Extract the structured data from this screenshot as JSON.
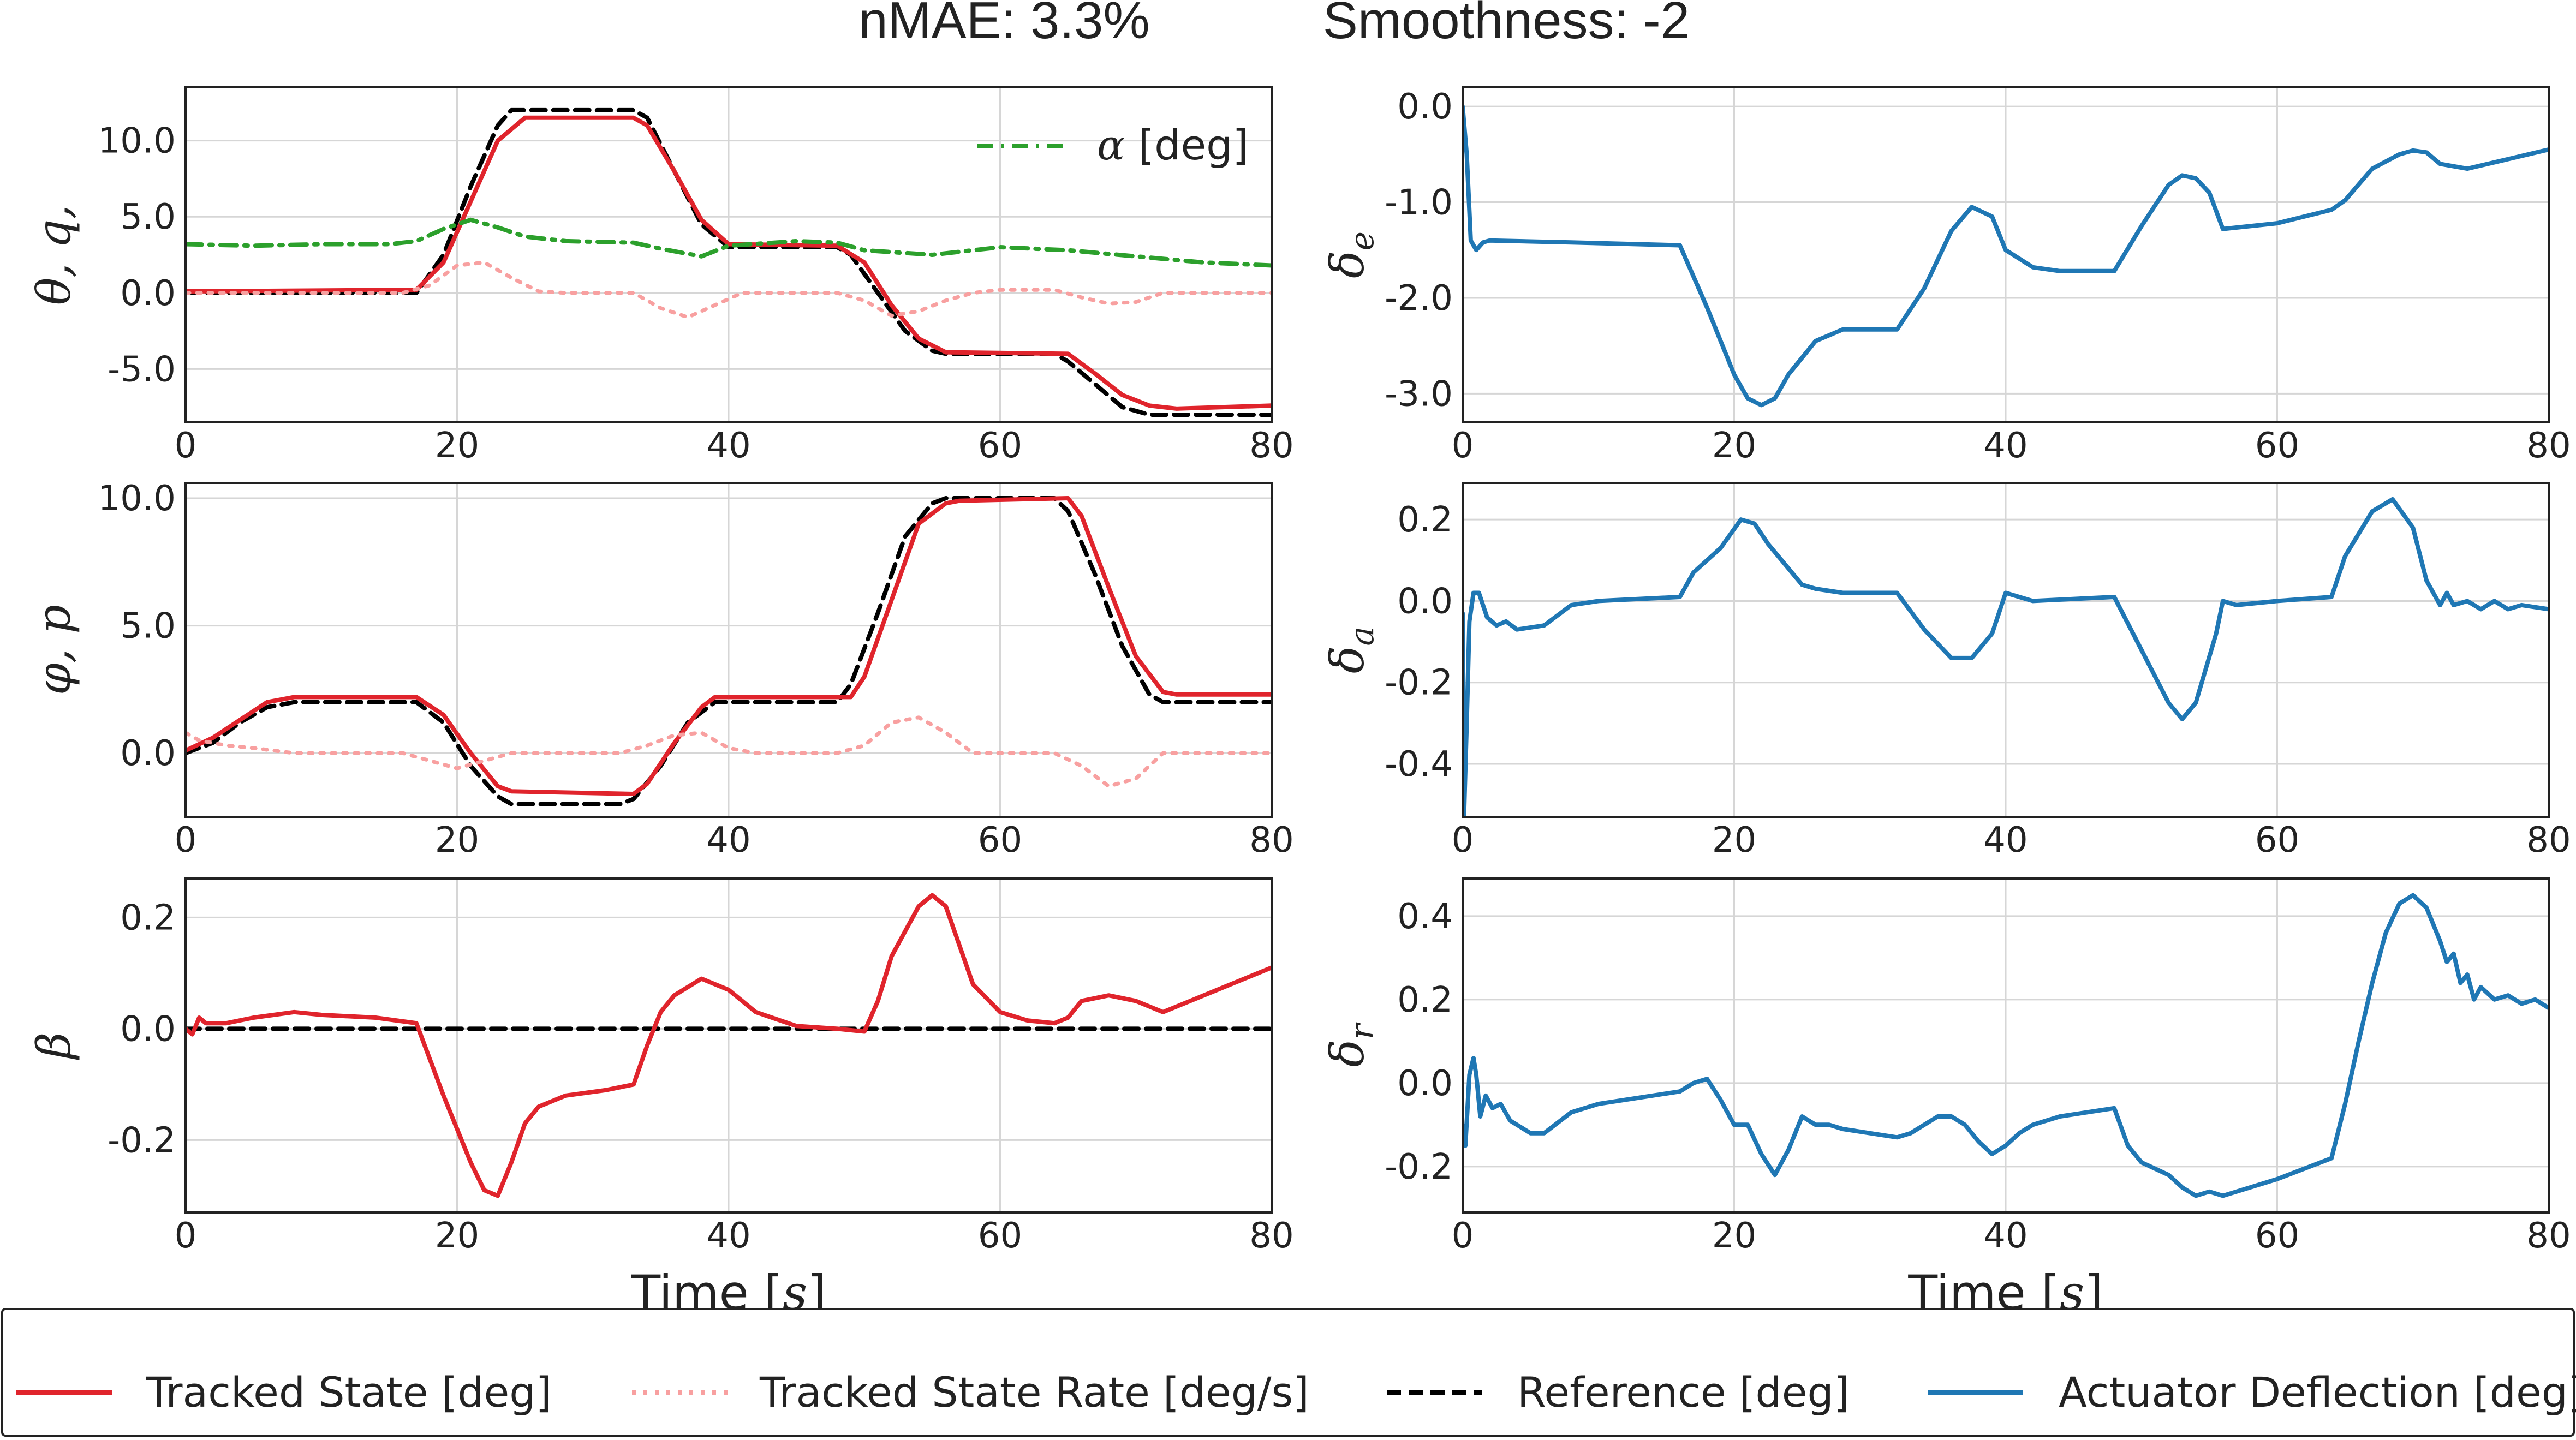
{
  "title": {
    "nmae": "nMAE: 3.3%",
    "smoothness": "Smoothness: -2"
  },
  "colors": {
    "tracked": "#e0242c",
    "rate": "#f8a0a0",
    "reference": "#000000",
    "alpha": "#2ca02c",
    "actuator": "#1f77b4"
  },
  "legend": {
    "items": [
      {
        "label": "Tracked State [deg]",
        "style": "tracked"
      },
      {
        "label": "Tracked State Rate [deg/s]",
        "style": "rate"
      },
      {
        "label": "Reference [deg]",
        "style": "reference"
      },
      {
        "label": "Actuator Deflection [deg]",
        "style": "actuator"
      }
    ]
  },
  "chart_data": [
    {
      "id": "pitch",
      "type": "line",
      "ylabel": "θ, q,",
      "xlim": [
        0,
        80
      ],
      "ylim": [
        -8.5,
        13.5
      ],
      "xticks": [
        0,
        20,
        40,
        60,
        80
      ],
      "xticklabels": [
        "0",
        "20",
        "40",
        "60",
        "80"
      ],
      "yticks": [
        -5,
        0,
        5,
        10
      ],
      "yticklabels": [
        "-5.0",
        "0.0",
        "5.0",
        "10.0"
      ],
      "xlabel": "",
      "annotation": "α [deg]",
      "series": [
        {
          "name": "Reference",
          "style": "reference",
          "x": [
            0,
            17,
            19,
            21,
            23,
            24,
            33,
            34,
            36,
            38,
            40,
            48,
            49,
            51,
            53,
            55,
            56,
            64,
            65,
            67,
            69,
            71,
            80
          ],
          "y": [
            0,
            0,
            2.5,
            7,
            11,
            12,
            12,
            11.5,
            8,
            4.5,
            3,
            3,
            2.5,
            0,
            -2.5,
            -3.8,
            -4,
            -4,
            -4.5,
            -6,
            -7.5,
            -8,
            -8
          ]
        },
        {
          "name": "Tracked State",
          "style": "tracked",
          "x": [
            0,
            17,
            19,
            21,
            23,
            25,
            33,
            34,
            36,
            38,
            40,
            48,
            50,
            52,
            54,
            56,
            65,
            67,
            69,
            71,
            73,
            80
          ],
          "y": [
            0.1,
            0.2,
            2,
            6,
            10,
            11.5,
            11.5,
            11,
            8,
            4.8,
            3.2,
            3.1,
            2,
            -0.8,
            -3,
            -3.9,
            -4,
            -5.3,
            -6.7,
            -7.4,
            -7.6,
            -7.4
          ]
        },
        {
          "name": "Tracked State Rate",
          "style": "rate",
          "x": [
            0,
            10,
            16,
            18,
            20,
            22,
            24,
            26,
            28,
            33,
            35,
            37,
            39,
            41,
            44,
            48,
            50,
            52,
            54,
            56,
            58,
            60,
            64,
            66,
            68,
            70,
            72,
            75,
            80
          ],
          "y": [
            0,
            0,
            0,
            0.5,
            1.8,
            2,
            1,
            0.1,
            0,
            0,
            -1,
            -1.6,
            -0.8,
            0,
            0,
            0,
            -0.5,
            -1.5,
            -1.2,
            -0.5,
            0,
            0.2,
            0.2,
            -0.3,
            -0.7,
            -0.6,
            0,
            0,
            0
          ]
        },
        {
          "name": "Alpha",
          "style": "alpha",
          "x": [
            0,
            5,
            10,
            15,
            17,
            19,
            21,
            23,
            25,
            28,
            33,
            35,
            38,
            40,
            45,
            48,
            50,
            55,
            60,
            65,
            70,
            75,
            80
          ],
          "y": [
            3.2,
            3.1,
            3.2,
            3.2,
            3.4,
            4.2,
            4.8,
            4.3,
            3.7,
            3.4,
            3.3,
            2.9,
            2.4,
            3.1,
            3.4,
            3.3,
            2.8,
            2.5,
            3.0,
            2.8,
            2.4,
            2.0,
            1.8
          ]
        }
      ]
    },
    {
      "id": "elevator",
      "type": "line",
      "ylabel": "δe",
      "xlim": [
        0,
        80
      ],
      "ylim": [
        -3.3,
        0.2
      ],
      "xticks": [
        0,
        20,
        40,
        60,
        80
      ],
      "xticklabels": [
        "0",
        "20",
        "40",
        "60",
        "80"
      ],
      "yticks": [
        -3,
        -2,
        -1,
        0
      ],
      "yticklabels": [
        "-3.0",
        "-2.0",
        "-1.0",
        "0.0"
      ],
      "xlabel": "",
      "series": [
        {
          "name": "Actuator Deflection",
          "style": "actuator",
          "x": [
            0,
            0.3,
            0.6,
            1,
            1.5,
            2,
            8,
            16,
            18,
            20,
            21,
            22,
            23,
            24,
            26,
            28,
            32,
            34,
            36,
            37.5,
            39,
            40,
            42,
            44,
            48,
            50,
            52,
            53,
            54,
            55,
            56,
            60,
            64,
            65,
            67,
            69,
            70,
            71,
            72,
            74,
            77,
            80
          ],
          "y": [
            0,
            -0.5,
            -1.4,
            -1.5,
            -1.42,
            -1.4,
            -1.42,
            -1.45,
            -2.1,
            -2.8,
            -3.05,
            -3.12,
            -3.05,
            -2.8,
            -2.45,
            -2.33,
            -2.33,
            -1.9,
            -1.3,
            -1.05,
            -1.15,
            -1.5,
            -1.68,
            -1.72,
            -1.72,
            -1.25,
            -0.82,
            -0.72,
            -0.75,
            -0.9,
            -1.28,
            -1.22,
            -1.08,
            -0.98,
            -0.65,
            -0.5,
            -0.46,
            -0.48,
            -0.6,
            -0.65,
            -0.55,
            -0.45
          ]
        }
      ]
    },
    {
      "id": "roll",
      "type": "line",
      "ylabel": "φ, p",
      "xlim": [
        0,
        80
      ],
      "ylim": [
        -2.5,
        10.6
      ],
      "xticks": [
        0,
        20,
        40,
        60,
        80
      ],
      "xticklabels": [
        "0",
        "20",
        "40",
        "60",
        "80"
      ],
      "yticks": [
        0,
        5,
        10
      ],
      "yticklabels": [
        "0.0",
        "5.0",
        "10.0"
      ],
      "xlabel": "",
      "series": [
        {
          "name": "Reference",
          "style": "reference",
          "x": [
            0,
            2,
            4,
            6,
            8,
            17,
            19,
            21,
            23,
            24,
            32,
            33,
            35,
            37,
            39,
            48,
            49,
            51,
            53,
            55,
            56,
            64,
            65,
            67,
            69,
            71,
            72,
            80
          ],
          "y": [
            0,
            0.4,
            1.2,
            1.8,
            2,
            2,
            1.2,
            -0.5,
            -1.7,
            -2,
            -2,
            -1.8,
            -0.5,
            1.2,
            2,
            2,
            2.7,
            5.5,
            8.5,
            9.8,
            10,
            10,
            9.5,
            7,
            4.2,
            2.3,
            2,
            2
          ]
        },
        {
          "name": "Tracked State",
          "style": "tracked",
          "x": [
            0,
            2,
            4,
            6,
            8,
            17,
            19,
            21,
            23,
            24,
            33,
            34,
            36,
            38,
            39,
            49,
            50,
            52,
            54,
            56,
            57,
            65,
            66,
            68,
            70,
            72,
            73,
            80
          ],
          "y": [
            0.1,
            0.6,
            1.3,
            2,
            2.2,
            2.2,
            1.5,
            0,
            -1.3,
            -1.5,
            -1.6,
            -1.2,
            0.4,
            1.8,
            2.2,
            2.2,
            3,
            6,
            9,
            9.8,
            9.9,
            10,
            9.3,
            6.5,
            3.8,
            2.4,
            2.3,
            2.3
          ]
        },
        {
          "name": "Tracked State Rate",
          "style": "rate",
          "x": [
            0,
            1,
            3,
            5,
            8,
            12,
            16,
            18,
            20,
            22,
            24,
            26,
            30,
            32,
            34,
            36,
            38,
            40,
            42,
            46,
            48,
            50,
            52,
            54,
            56,
            58,
            62,
            64,
            66,
            68,
            70,
            72,
            75,
            80
          ],
          "y": [
            0.8,
            0.5,
            0.3,
            0.2,
            0,
            0,
            0,
            -0.3,
            -0.6,
            -0.3,
            0,
            0,
            0,
            0,
            0.3,
            0.7,
            0.8,
            0.2,
            0,
            0,
            0,
            0.3,
            1.2,
            1.4,
            0.8,
            0,
            0,
            0,
            -0.5,
            -1.3,
            -1,
            0,
            0,
            0
          ]
        }
      ]
    },
    {
      "id": "aileron",
      "type": "line",
      "ylabel": "δa",
      "xlim": [
        0,
        80
      ],
      "ylim": [
        -0.53,
        0.29
      ],
      "xticks": [
        0,
        20,
        40,
        60,
        80
      ],
      "xticklabels": [
        "0",
        "20",
        "40",
        "60",
        "80"
      ],
      "yticks": [
        -0.4,
        -0.2,
        0,
        0.2
      ],
      "yticklabels": [
        "-0.4",
        "-0.2",
        "0.0",
        "0.2"
      ],
      "xlabel": "",
      "series": [
        {
          "name": "Actuator Deflection",
          "style": "actuator",
          "x": [
            0,
            0.1,
            0.3,
            0.5,
            0.8,
            1.2,
            1.8,
            2.5,
            3.2,
            4,
            6,
            8,
            10,
            16,
            17,
            19,
            20.5,
            21.5,
            22.5,
            23.5,
            24.5,
            25,
            26,
            28,
            32,
            34,
            36,
            37.5,
            39,
            40,
            42,
            48,
            50,
            52,
            53,
            54,
            55.5,
            56,
            57,
            60,
            64,
            65,
            67,
            68.5,
            70,
            71,
            72,
            72.5,
            73,
            74,
            75,
            76,
            77,
            78,
            80
          ],
          "y": [
            -0.03,
            -0.53,
            -0.3,
            -0.05,
            0.02,
            0.02,
            -0.04,
            -0.06,
            -0.05,
            -0.07,
            -0.06,
            -0.01,
            0,
            0.01,
            0.07,
            0.13,
            0.2,
            0.19,
            0.14,
            0.1,
            0.06,
            0.04,
            0.03,
            0.02,
            0.02,
            -0.07,
            -0.14,
            -0.14,
            -0.08,
            0.02,
            0,
            0.01,
            -0.12,
            -0.25,
            -0.29,
            -0.25,
            -0.08,
            0,
            -0.01,
            0,
            0.01,
            0.11,
            0.22,
            0.25,
            0.18,
            0.05,
            -0.01,
            0.02,
            -0.01,
            0,
            -0.02,
            0,
            -0.02,
            -0.01,
            -0.02
          ]
        }
      ]
    },
    {
      "id": "sideslip",
      "type": "line",
      "ylabel": "β",
      "xlim": [
        0,
        80
      ],
      "ylim": [
        -0.33,
        0.27
      ],
      "xticks": [
        0,
        20,
        40,
        60,
        80
      ],
      "xticklabels": [
        "0",
        "20",
        "40",
        "60",
        "80"
      ],
      "yticks": [
        -0.2,
        0,
        0.2
      ],
      "yticklabels": [
        "-0.2",
        "0.0",
        "0.2"
      ],
      "xlabel": "Time [s]",
      "series": [
        {
          "name": "Reference",
          "style": "reference",
          "x": [
            0,
            80
          ],
          "y": [
            0,
            0
          ]
        },
        {
          "name": "Tracked State",
          "style": "tracked",
          "x": [
            0,
            0.5,
            1,
            1.5,
            2,
            3,
            5,
            8,
            10,
            14,
            17,
            19,
            21,
            22,
            23,
            24,
            25,
            26,
            28,
            31,
            33,
            34,
            35,
            36,
            38,
            40,
            42,
            45,
            48,
            50,
            51,
            52,
            54,
            55,
            56,
            57,
            58,
            60,
            62,
            64,
            65,
            66,
            68,
            70,
            72,
            74,
            76,
            78,
            80
          ],
          "y": [
            0,
            -0.01,
            0.02,
            0.01,
            0.01,
            0.01,
            0.02,
            0.03,
            0.025,
            0.02,
            0.01,
            -0.12,
            -0.24,
            -0.29,
            -0.3,
            -0.24,
            -0.17,
            -0.14,
            -0.12,
            -0.11,
            -0.1,
            -0.03,
            0.03,
            0.06,
            0.09,
            0.07,
            0.03,
            0.005,
            0,
            -0.005,
            0.05,
            0.13,
            0.22,
            0.24,
            0.22,
            0.15,
            0.08,
            0.03,
            0.015,
            0.01,
            0.02,
            0.05,
            0.06,
            0.05,
            0.03,
            0.05,
            0.07,
            0.09,
            0.11
          ]
        }
      ]
    },
    {
      "id": "rudder",
      "type": "line",
      "ylabel": "δr",
      "xlim": [
        0,
        80
      ],
      "ylim": [
        -0.31,
        0.49
      ],
      "xticks": [
        0,
        20,
        40,
        60,
        80
      ],
      "xticklabels": [
        "0",
        "20",
        "40",
        "60",
        "80"
      ],
      "yticks": [
        -0.2,
        0,
        0.2,
        0.4
      ],
      "yticklabels": [
        "-0.2",
        "0.0",
        "0.2",
        "0.4"
      ],
      "xlabel": "Time [s]",
      "series": [
        {
          "name": "Actuator Deflection",
          "style": "actuator",
          "x": [
            0,
            0.2,
            0.5,
            0.8,
            1,
            1.3,
            1.7,
            2.2,
            2.8,
            3.5,
            4,
            5,
            6,
            8,
            10,
            14,
            16,
            17,
            18,
            19,
            20,
            21,
            22,
            23,
            24,
            25,
            26,
            27,
            28,
            30,
            32,
            33,
            34,
            35,
            36,
            37,
            38,
            39,
            40,
            41,
            42,
            44,
            48,
            49,
            50,
            52,
            53,
            54,
            55,
            56,
            57,
            60,
            64,
            65,
            66,
            67,
            68,
            69,
            70,
            71,
            72,
            72.5,
            73,
            73.5,
            74,
            74.5,
            75,
            76,
            77,
            78,
            79,
            80
          ],
          "y": [
            -0.1,
            -0.15,
            0.02,
            0.06,
            0.02,
            -0.08,
            -0.03,
            -0.06,
            -0.05,
            -0.09,
            -0.1,
            -0.12,
            -0.12,
            -0.07,
            -0.05,
            -0.03,
            -0.02,
            0,
            0.01,
            -0.04,
            -0.1,
            -0.1,
            -0.17,
            -0.22,
            -0.16,
            -0.08,
            -0.1,
            -0.1,
            -0.11,
            -0.12,
            -0.13,
            -0.12,
            -0.1,
            -0.08,
            -0.08,
            -0.1,
            -0.14,
            -0.17,
            -0.15,
            -0.12,
            -0.1,
            -0.08,
            -0.06,
            -0.15,
            -0.19,
            -0.22,
            -0.25,
            -0.27,
            -0.26,
            -0.27,
            -0.26,
            -0.23,
            -0.18,
            -0.05,
            0.1,
            0.24,
            0.36,
            0.43,
            0.45,
            0.42,
            0.34,
            0.29,
            0.31,
            0.24,
            0.26,
            0.2,
            0.23,
            0.2,
            0.21,
            0.19,
            0.2,
            0.18
          ]
        }
      ]
    }
  ]
}
